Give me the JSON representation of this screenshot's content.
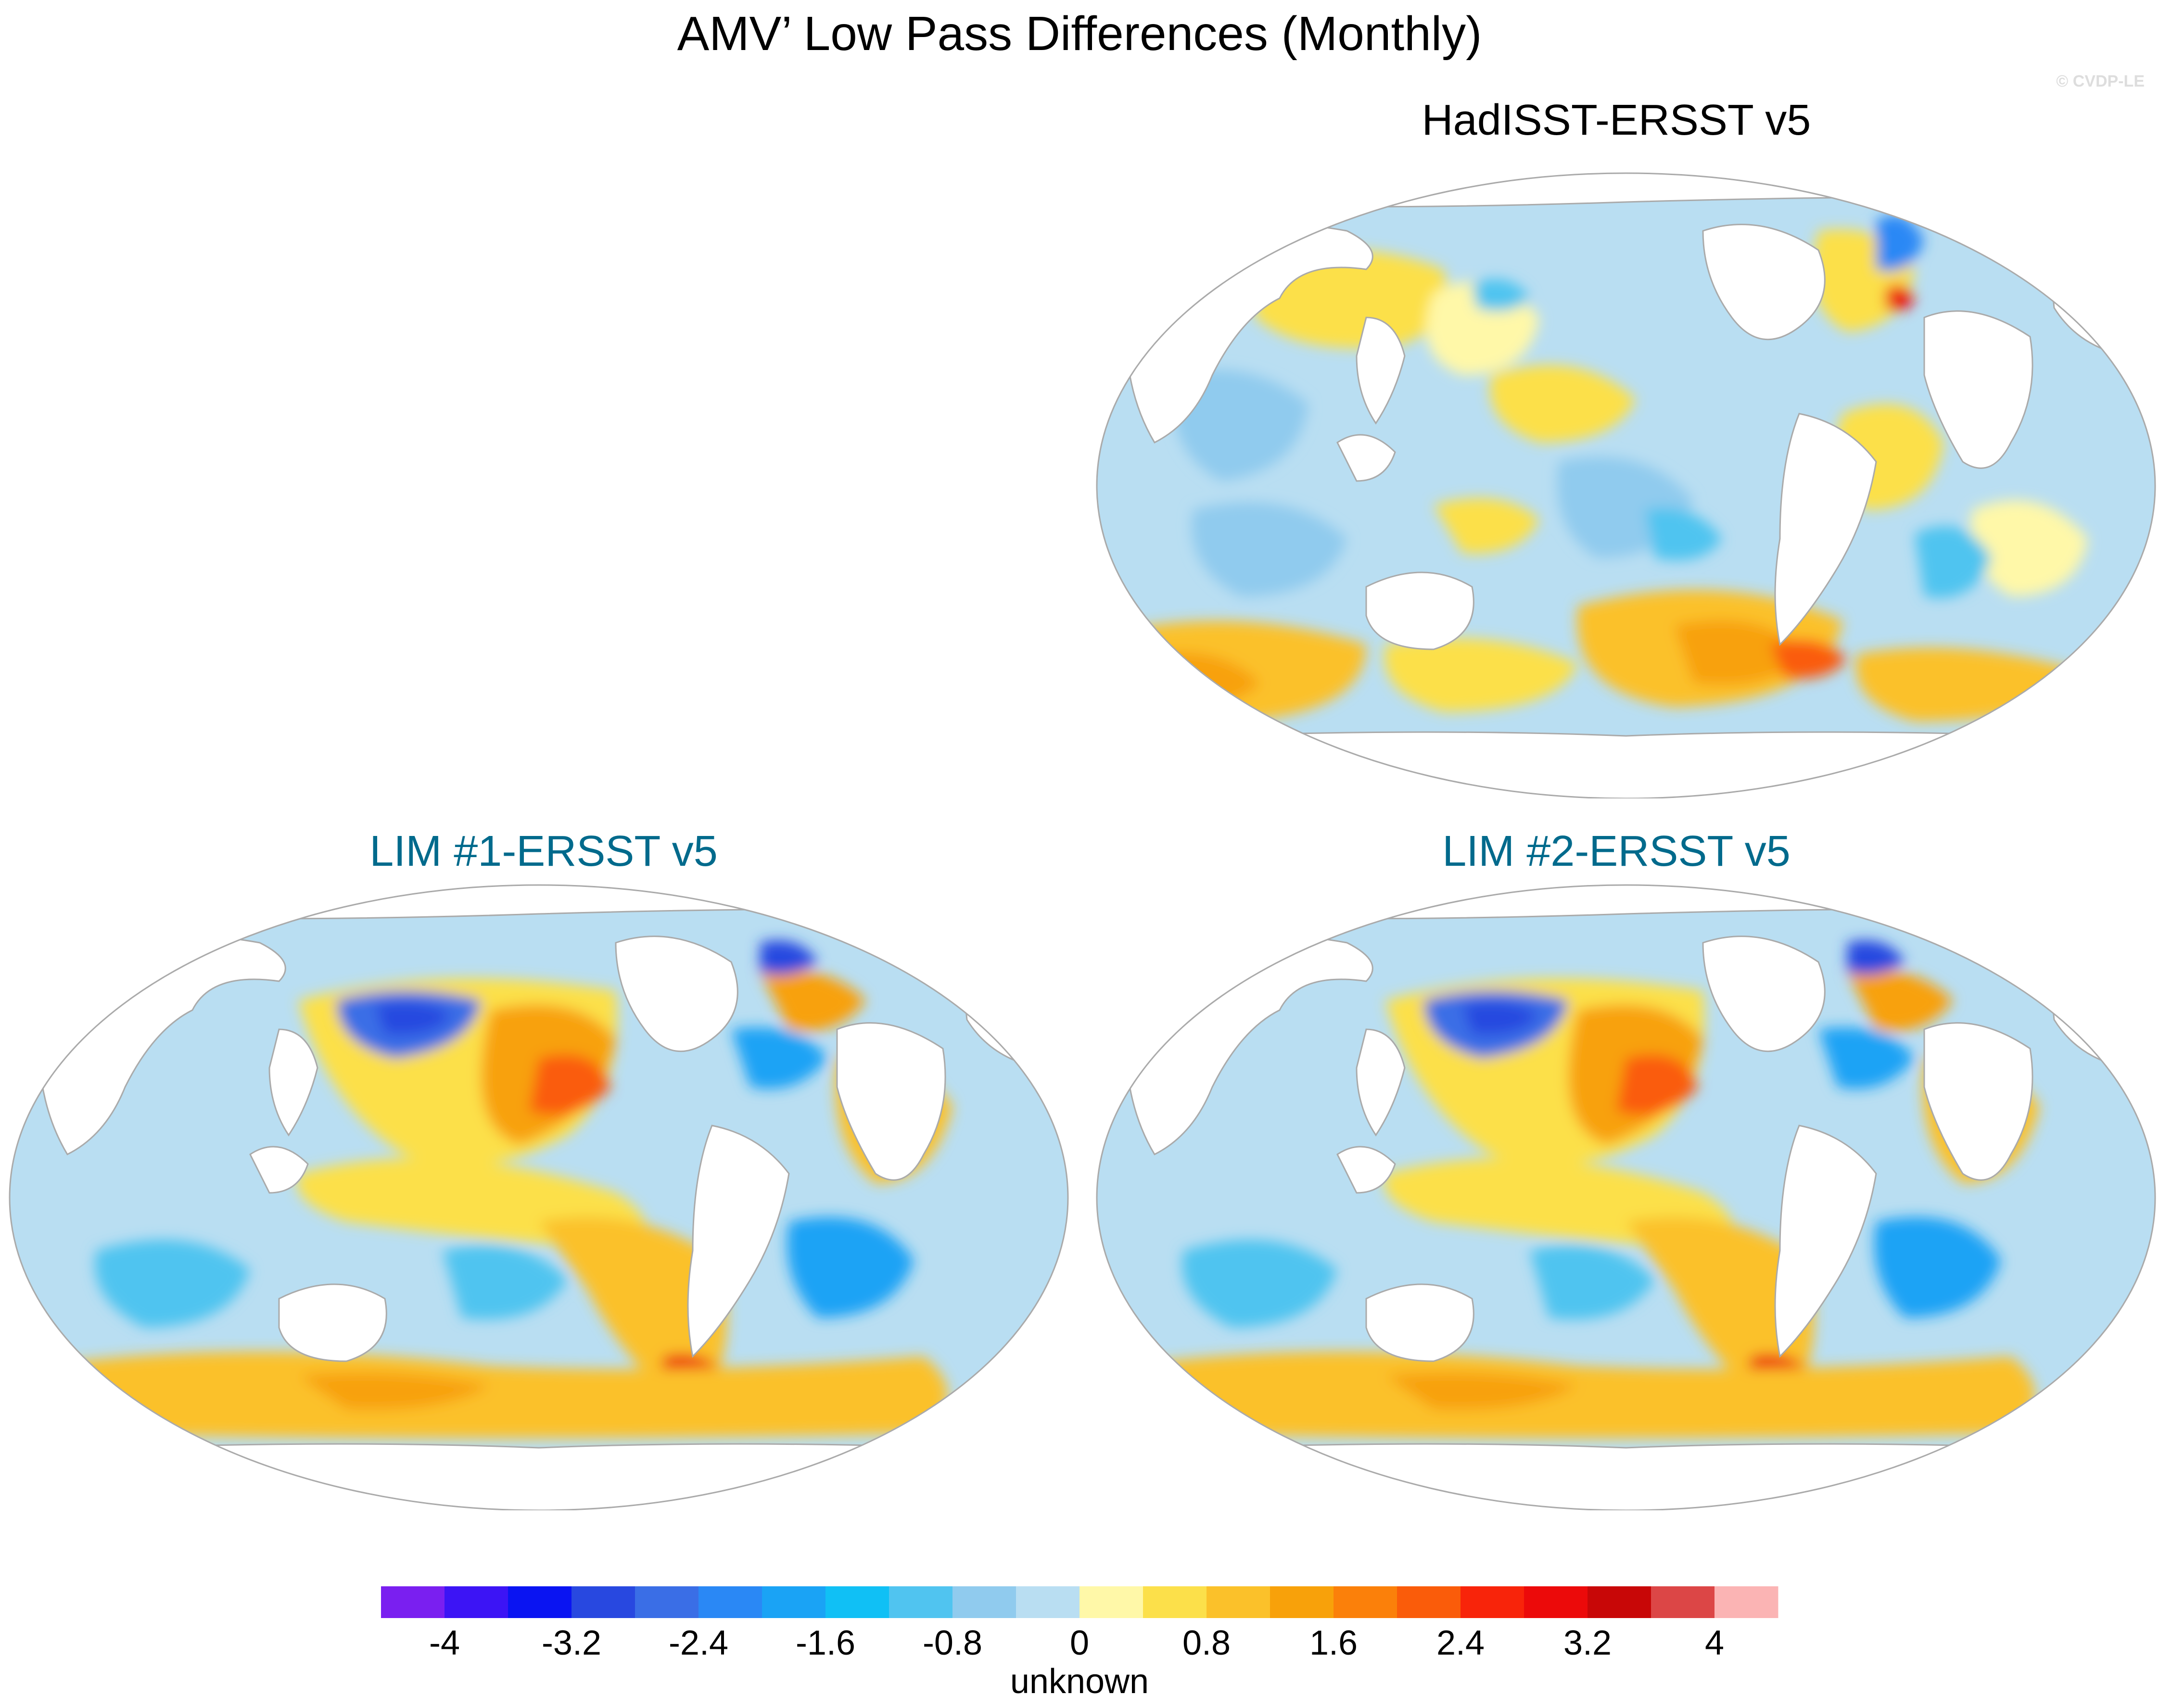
{
  "title": "AMV’ Low Pass Differences (Monthly)",
  "credit": "© CVDP-LE",
  "panels": [
    {
      "title": "HadISST-ERSST v5",
      "style": "obs"
    },
    {
      "title": "LIM #1-ERSST v5",
      "style": "model"
    },
    {
      "title": "LIM #2-ERSST v5",
      "style": "model"
    }
  ],
  "colorbar": {
    "label": "unknown",
    "ticks": [
      "-4",
      "-3.2",
      "-2.4",
      "-1.6",
      "-0.8",
      "0",
      "0.8",
      "1.6",
      "2.4",
      "3.2",
      "4"
    ],
    "colors": [
      "#7a1ff0",
      "#3c14f5",
      "#0a14f2",
      "#2848e0",
      "#3a6ee6",
      "#2a88f5",
      "#1aa3f5",
      "#10c0f5",
      "#50c4f0",
      "#90cbee",
      "#b9def2",
      "#fff8a8",
      "#fce04a",
      "#fbc12a",
      "#f8a10a",
      "#fb800a",
      "#fa5c0a",
      "#f8240a",
      "#ec0a0a",
      "#c80707",
      "#dc4646",
      "#fbb4b4"
    ]
  },
  "colors": {
    "ocean_default": "#b9def2",
    "land": "#ffffff",
    "coast": "#aaaaaa"
  }
}
